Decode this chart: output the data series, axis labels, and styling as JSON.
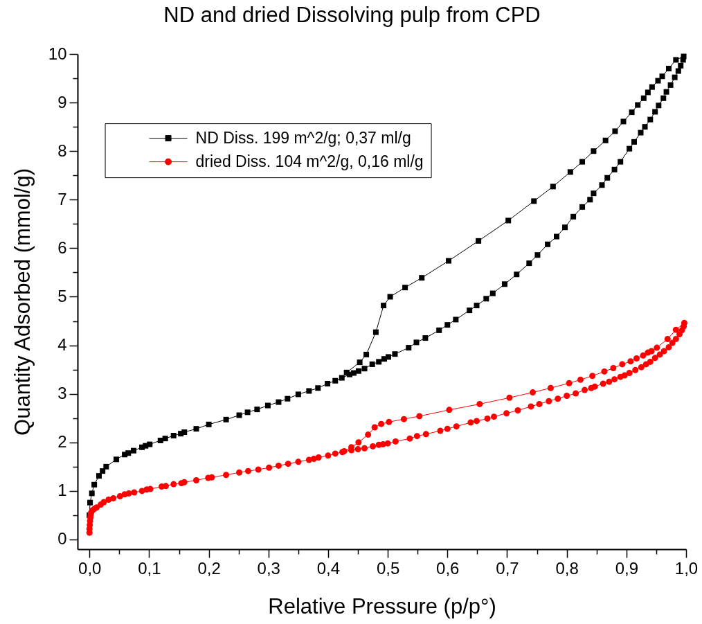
{
  "chart_data": {
    "type": "line",
    "title": "ND and dried Dissolving pulp from CPD",
    "xlabel": "Relative Pressure (p/p°)",
    "ylabel": "Quantity Adsorbed (mmol/g)",
    "xlim": [
      -0.02,
      1.0
    ],
    "ylim": [
      -0.2,
      10
    ],
    "xticks": [
      {
        "value": 0,
        "label": "0,0"
      },
      {
        "value": 0.05,
        "label": null
      },
      {
        "value": 0.1,
        "label": "0,1"
      },
      {
        "value": 0.15,
        "label": null
      },
      {
        "value": 0.2,
        "label": "0,2"
      },
      {
        "value": 0.25,
        "label": null
      },
      {
        "value": 0.3,
        "label": "0,3"
      },
      {
        "value": 0.35,
        "label": null
      },
      {
        "value": 0.4,
        "label": "0,4"
      },
      {
        "value": 0.45,
        "label": null
      },
      {
        "value": 0.5,
        "label": "0,5"
      },
      {
        "value": 0.55,
        "label": null
      },
      {
        "value": 0.6,
        "label": "0,6"
      },
      {
        "value": 0.65,
        "label": null
      },
      {
        "value": 0.7,
        "label": "0,7"
      },
      {
        "value": 0.75,
        "label": null
      },
      {
        "value": 0.8,
        "label": "0,8"
      },
      {
        "value": 0.85,
        "label": null
      },
      {
        "value": 0.9,
        "label": "0,9"
      },
      {
        "value": 0.95,
        "label": null
      },
      {
        "value": 1.0,
        "label": "1,0"
      }
    ],
    "yticks": [
      0,
      {
        "value": 0.5,
        "label": null
      },
      1,
      {
        "value": 1.5,
        "label": null
      },
      2,
      {
        "value": 2.5,
        "label": null
      },
      3,
      {
        "value": 3.5,
        "label": null
      },
      4,
      {
        "value": 4.5,
        "label": null
      },
      5,
      {
        "value": 5.5,
        "label": null
      },
      6,
      {
        "value": 6.5,
        "label": null
      },
      7,
      {
        "value": 7.5,
        "label": null
      },
      8,
      {
        "value": 8.5,
        "label": null
      },
      9,
      {
        "value": 9.5,
        "label": null
      },
      10
    ],
    "legend": "top left",
    "series": [
      {
        "name": "ND Diss. 199 m^2/g; 0,37 ml/g",
        "color": "#000000",
        "marker": "square",
        "x": [
          0,
          0.001,
          0.004,
          0.008,
          0.016,
          0.022,
          0.028,
          0.045,
          0.059,
          0.065,
          0.074,
          0.088,
          0.094,
          0.101,
          0.119,
          0.127,
          0.141,
          0.153,
          0.159,
          0.179,
          0.2,
          0.229,
          0.251,
          0.265,
          0.281,
          0.299,
          0.317,
          0.332,
          0.35,
          0.368,
          0.383,
          0.399,
          0.412,
          0.423,
          0.436,
          0.443,
          0.451,
          0.461,
          0.474,
          0.485,
          0.494,
          0.501,
          0.512,
          0.535,
          0.548,
          0.563,
          0.586,
          0.6,
          0.614,
          0.637,
          0.649,
          0.665,
          0.676,
          0.696,
          0.716,
          0.737,
          0.751,
          0.768,
          0.783,
          0.797,
          0.811,
          0.826,
          0.839,
          0.845,
          0.859,
          0.868,
          0.88,
          0.89,
          0.905,
          0.913,
          0.924,
          0.931,
          0.94,
          0.948,
          0.954,
          0.962,
          0.967,
          0.974,
          0.981,
          0.987,
          0.991,
          0.995,
          0.996,
          0.983,
          0.971,
          0.96,
          0.953,
          0.943,
          0.936,
          0.929,
          0.919,
          0.909,
          0.895,
          0.881,
          0.865,
          0.845,
          0.826,
          0.806,
          0.777,
          0.745,
          0.702,
          0.652,
          0.602,
          0.557,
          0.529,
          0.504,
          0.493,
          0.48,
          0.464,
          0.453,
          0.431
        ],
        "values": [
          0.5,
          0.76,
          0.95,
          1.13,
          1.31,
          1.41,
          1.5,
          1.65,
          1.75,
          1.78,
          1.83,
          1.9,
          1.93,
          1.96,
          2.04,
          2.08,
          2.14,
          2.18,
          2.21,
          2.28,
          2.37,
          2.47,
          2.56,
          2.62,
          2.68,
          2.76,
          2.83,
          2.9,
          2.99,
          3.06,
          3.12,
          3.21,
          3.27,
          3.33,
          3.4,
          3.43,
          3.47,
          3.52,
          3.61,
          3.66,
          3.72,
          3.76,
          3.82,
          3.95,
          4.06,
          4.15,
          4.31,
          4.42,
          4.53,
          4.72,
          4.82,
          4.96,
          5.07,
          5.26,
          5.46,
          5.69,
          5.86,
          6.08,
          6.24,
          6.43,
          6.65,
          6.85,
          7.0,
          7.13,
          7.3,
          7.45,
          7.62,
          7.78,
          8.05,
          8.19,
          8.38,
          8.5,
          8.65,
          8.81,
          8.94,
          9.09,
          9.22,
          9.36,
          9.52,
          9.65,
          9.76,
          9.88,
          9.95,
          9.88,
          9.7,
          9.54,
          9.45,
          9.32,
          9.21,
          9.09,
          8.95,
          8.8,
          8.61,
          8.41,
          8.22,
          8.0,
          7.78,
          7.57,
          7.27,
          6.97,
          6.57,
          6.15,
          5.74,
          5.39,
          5.19,
          5.0,
          4.82,
          4.27,
          3.81,
          3.65,
          3.44
        ]
      },
      {
        "name": "dried Diss. 104 m^2/g, 0,16 ml/g",
        "color": "#ff0000",
        "marker": "circle",
        "x": [
          0,
          0,
          0.0005,
          0.001,
          0.0015,
          0.002,
          0.003,
          0.005,
          0.008,
          0.012,
          0.019,
          0.024,
          0.032,
          0.04,
          0.051,
          0.059,
          0.066,
          0.075,
          0.088,
          0.096,
          0.102,
          0.121,
          0.128,
          0.141,
          0.154,
          0.159,
          0.179,
          0.199,
          0.205,
          0.229,
          0.251,
          0.266,
          0.283,
          0.301,
          0.317,
          0.333,
          0.35,
          0.368,
          0.376,
          0.384,
          0.4,
          0.412,
          0.424,
          0.439,
          0.45,
          0.461,
          0.475,
          0.485,
          0.492,
          0.5,
          0.513,
          0.537,
          0.549,
          0.564,
          0.588,
          0.6,
          0.615,
          0.639,
          0.649,
          0.667,
          0.678,
          0.699,
          0.718,
          0.74,
          0.754,
          0.77,
          0.785,
          0.8,
          0.815,
          0.83,
          0.841,
          0.847,
          0.861,
          0.871,
          0.88,
          0.89,
          0.897,
          0.905,
          0.915,
          0.925,
          0.933,
          0.94,
          0.948,
          0.956,
          0.963,
          0.971,
          0.977,
          0.983,
          0.989,
          0.993,
          0.996,
          0.997,
          0.983,
          0.969,
          0.951,
          0.942,
          0.936,
          0.928,
          0.917,
          0.907,
          0.893,
          0.878,
          0.863,
          0.843,
          0.823,
          0.804,
          0.773,
          0.743,
          0.704,
          0.654,
          0.603,
          0.553,
          0.527,
          0.502,
          0.489,
          0.478,
          0.467,
          0.451,
          0.439,
          0.427
        ],
        "values": [
          0.14,
          0.22,
          0.3,
          0.38,
          0.45,
          0.51,
          0.56,
          0.6,
          0.63,
          0.66,
          0.72,
          0.77,
          0.82,
          0.85,
          0.89,
          0.93,
          0.95,
          0.97,
          1.0,
          1.03,
          1.04,
          1.09,
          1.1,
          1.14,
          1.16,
          1.18,
          1.22,
          1.27,
          1.28,
          1.33,
          1.38,
          1.41,
          1.44,
          1.48,
          1.52,
          1.56,
          1.6,
          1.64,
          1.66,
          1.69,
          1.73,
          1.77,
          1.8,
          1.84,
          1.86,
          1.88,
          1.92,
          1.95,
          1.96,
          1.98,
          2.02,
          2.08,
          2.13,
          2.17,
          2.24,
          2.28,
          2.33,
          2.41,
          2.44,
          2.49,
          2.53,
          2.6,
          2.66,
          2.74,
          2.79,
          2.85,
          2.9,
          2.96,
          3.01,
          3.08,
          3.12,
          3.15,
          3.21,
          3.25,
          3.3,
          3.35,
          3.38,
          3.43,
          3.49,
          3.55,
          3.61,
          3.66,
          3.74,
          3.81,
          3.88,
          3.96,
          4.05,
          4.13,
          4.23,
          4.31,
          4.39,
          4.46,
          4.32,
          4.13,
          3.95,
          3.88,
          3.85,
          3.79,
          3.73,
          3.67,
          3.61,
          3.53,
          3.46,
          3.37,
          3.29,
          3.22,
          3.12,
          3.03,
          2.92,
          2.79,
          2.67,
          2.54,
          2.48,
          2.42,
          2.38,
          2.31,
          2.16,
          2.0,
          1.9,
          1.82
        ]
      }
    ]
  }
}
